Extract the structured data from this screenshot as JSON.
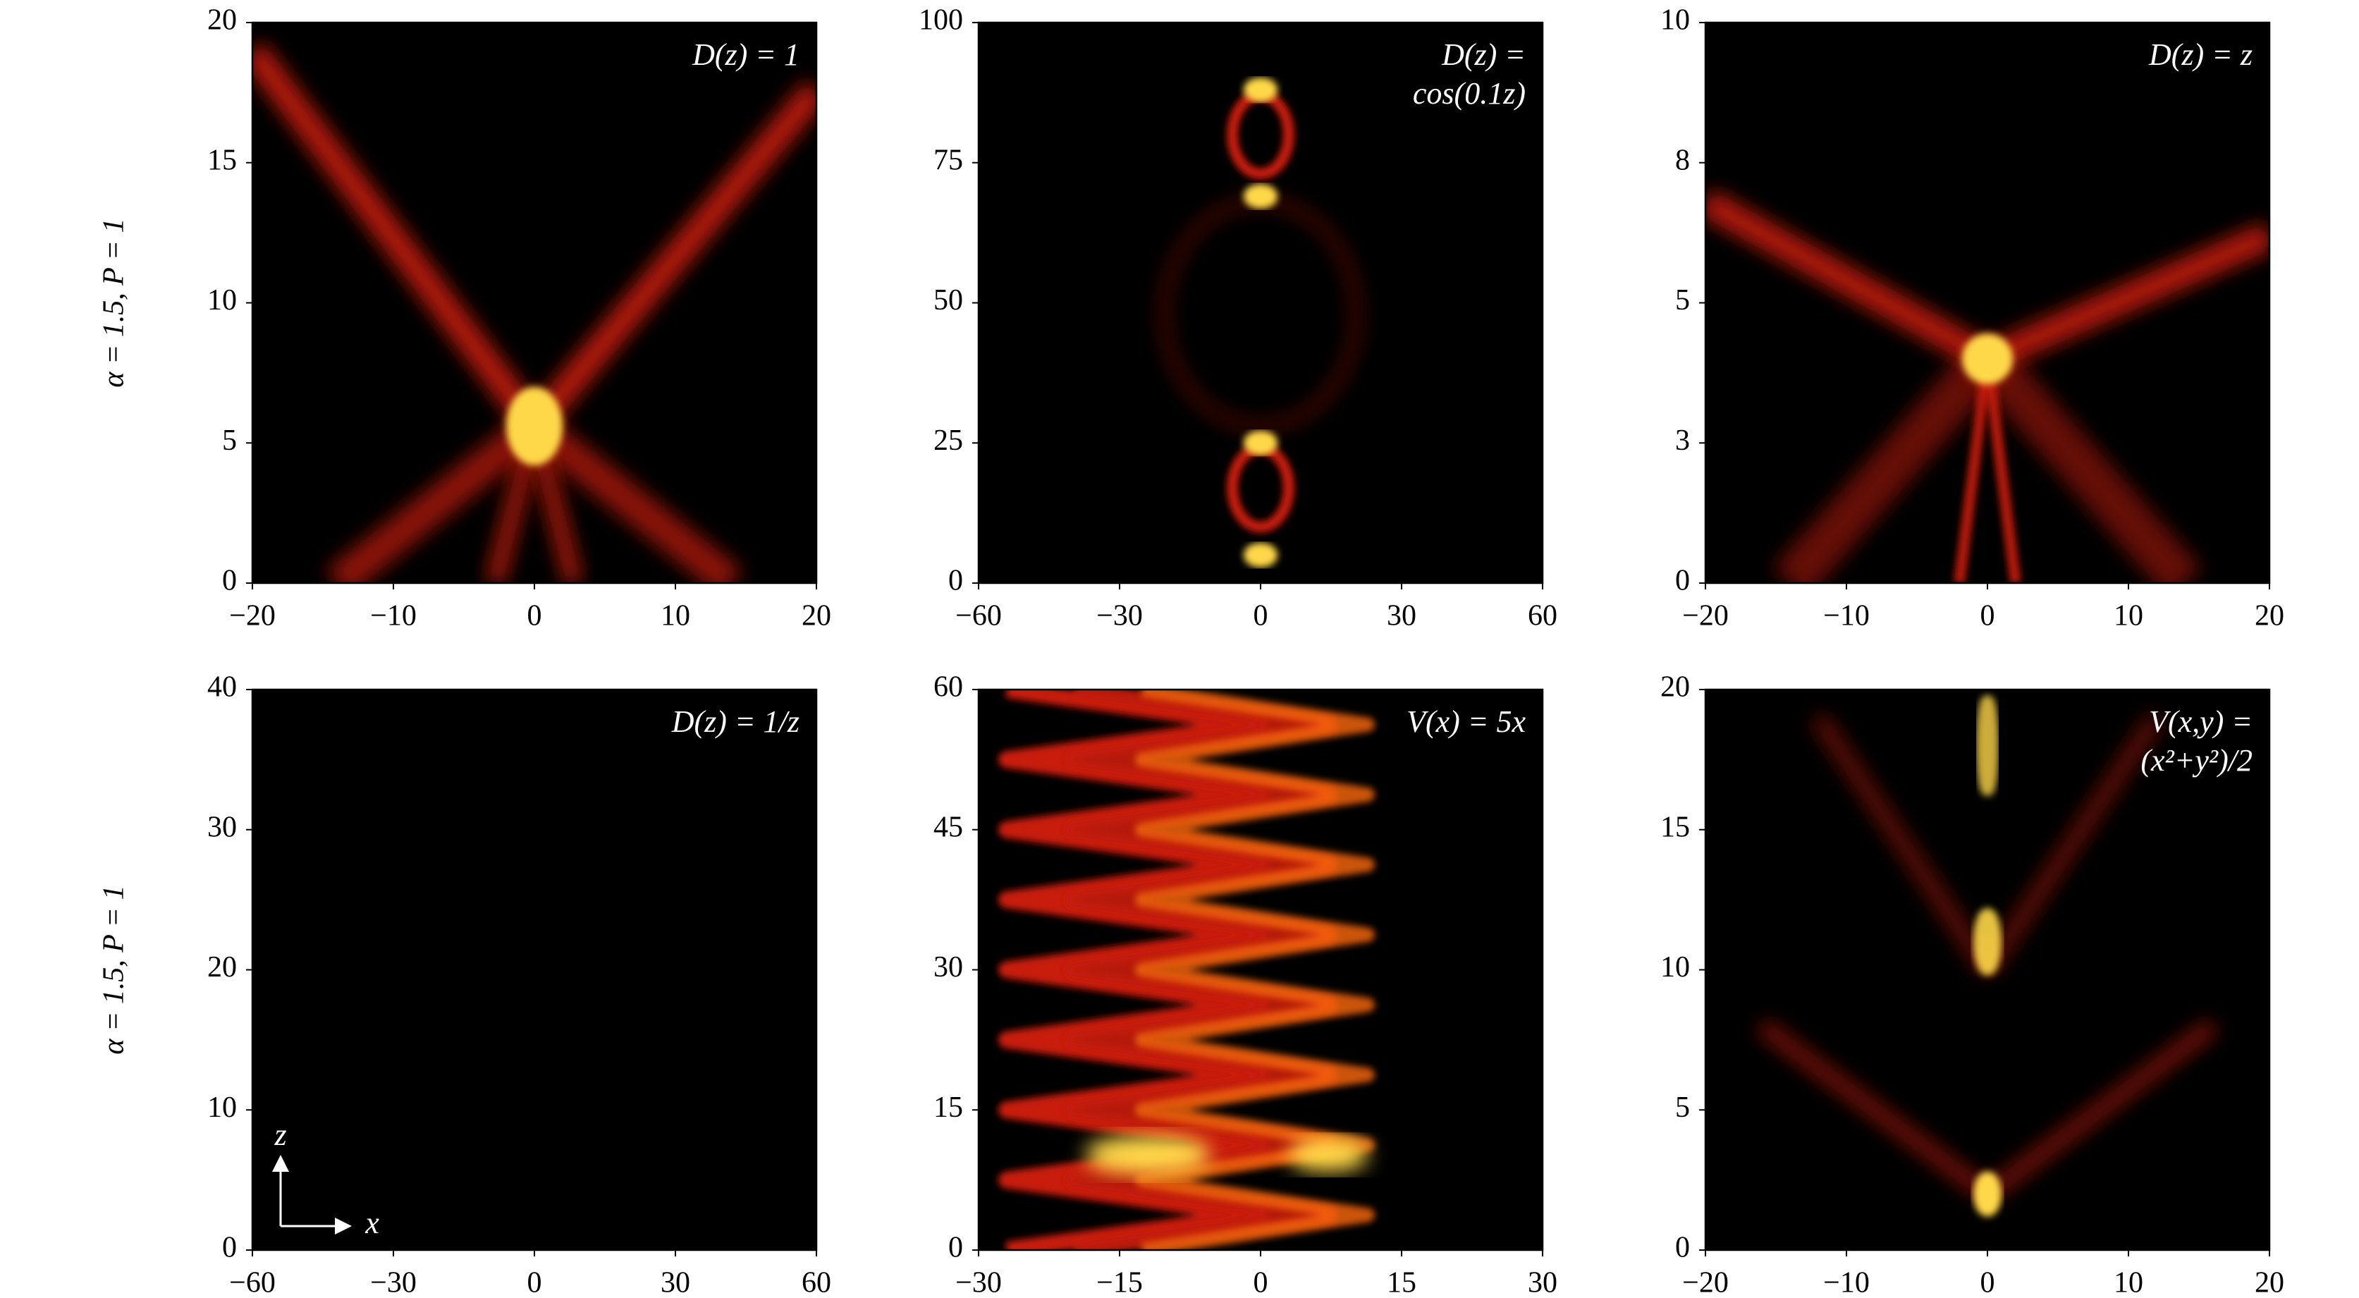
{
  "row_labels": [
    "α = 1.5, P = 1",
    "α = 1.5, P = 1"
  ],
  "chart_data": [
    {
      "type": "heatmap",
      "annotation": [
        "D(z) = 1"
      ],
      "xlim": [
        -20,
        20
      ],
      "xticks": [
        {
          "value": -20,
          "label": "−20"
        },
        {
          "value": -10,
          "label": "−10"
        },
        0,
        10,
        20
      ],
      "ylim": [
        0,
        20
      ],
      "yticks": [
        0,
        5,
        10,
        15,
        20
      ]
    },
    {
      "type": "heatmap",
      "annotation": [
        "D(z) =",
        "cos(0.1z)"
      ],
      "xlim": [
        -60,
        60
      ],
      "xticks": [
        {
          "value": -60,
          "label": "−60"
        },
        {
          "value": -30,
          "label": "−30"
        },
        0,
        30,
        60
      ],
      "ylim": [
        0,
        100
      ],
      "yticks": [
        0,
        25,
        50,
        75,
        100
      ]
    },
    {
      "type": "heatmap",
      "annotation": [
        "D(z) = z"
      ],
      "xlim": [
        -20,
        20
      ],
      "xticks": [
        {
          "value": -20,
          "label": "−20"
        },
        {
          "value": -10,
          "label": "−10"
        },
        0,
        10,
        20
      ],
      "ylim": [
        0,
        10
      ],
      "yticks": [
        0,
        {
          "value": 2.5,
          "label": "3"
        },
        5,
        {
          "value": 7.5,
          "label": "8"
        },
        10
      ]
    },
    {
      "type": "heatmap",
      "annotation": [
        "D(z) = 1/z"
      ],
      "axis_arrows": [
        "z",
        "x"
      ],
      "xlim": [
        -60,
        60
      ],
      "xticks": [
        {
          "value": -60,
          "label": "−60"
        },
        {
          "value": -30,
          "label": "−30"
        },
        0,
        30,
        60
      ],
      "ylim": [
        0,
        40
      ],
      "yticks": [
        0,
        10,
        20,
        30,
        40
      ]
    },
    {
      "type": "heatmap",
      "annotation": [
        "V(x) = 5x"
      ],
      "xlim": [
        -30,
        30
      ],
      "xticks": [
        {
          "value": -30,
          "label": "−30"
        },
        {
          "value": -15,
          "label": "−15"
        },
        0,
        15,
        30
      ],
      "ylim": [
        0,
        60
      ],
      "yticks": [
        0,
        15,
        30,
        45,
        60
      ]
    },
    {
      "type": "heatmap",
      "annotation": [
        "V(x,y) =",
        "(x²+y²)/2"
      ],
      "xlim": [
        -20,
        20
      ],
      "xticks": [
        {
          "value": -20,
          "label": "−20"
        },
        {
          "value": -10,
          "label": "−10"
        },
        0,
        10,
        20
      ],
      "ylim": [
        0,
        20
      ],
      "yticks": [
        0,
        5,
        10,
        15,
        20
      ]
    }
  ]
}
